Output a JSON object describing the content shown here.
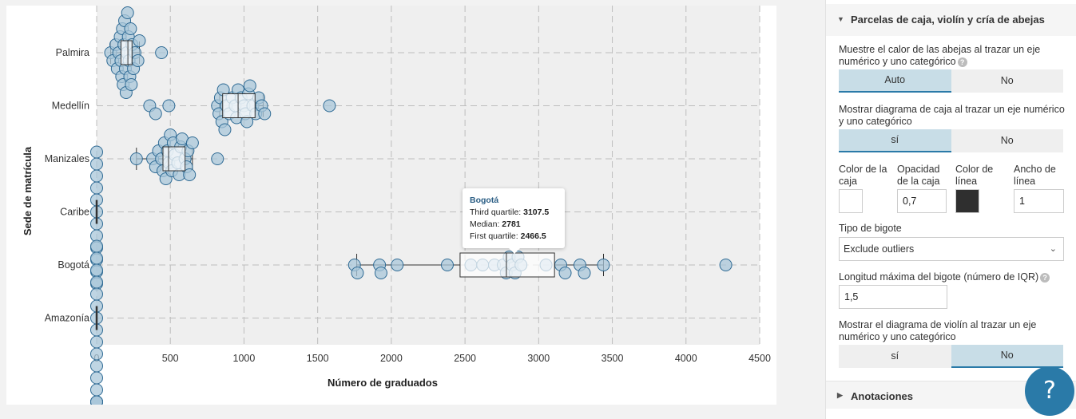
{
  "chart_data": {
    "type": "box-beeswarm",
    "xlabel": "Número de graduados",
    "ylabel": "Sede de matrícula",
    "xlim": [
      0,
      4500
    ],
    "xticks": [
      0,
      500,
      1000,
      1500,
      2000,
      2500,
      3000,
      3500,
      4000,
      4500
    ],
    "categories": [
      "Palmira",
      "Medellín",
      "Manizales",
      "Caribe",
      "Bogotá",
      "Amazonía"
    ],
    "grid": true,
    "series": [
      {
        "name": "Palmira",
        "box": {
          "whisker_low": 95,
          "q1": 165,
          "median": 212,
          "q3": 240,
          "whisker_high": 290
        },
        "points": [
          95,
          110,
          130,
          140,
          150,
          160,
          165,
          170,
          175,
          180,
          185,
          190,
          195,
          200,
          205,
          210,
          215,
          220,
          225,
          230,
          235,
          240,
          250,
          260,
          280,
          290,
          440
        ]
      },
      {
        "name": "Medellín",
        "box": {
          "whisker_low": 835,
          "q1": 855,
          "median": 960,
          "q3": 1075,
          "whisker_high": 1130
        },
        "points": [
          360,
          400,
          490,
          820,
          830,
          840,
          850,
          860,
          870,
          880,
          900,
          920,
          940,
          950,
          960,
          980,
          1000,
          1010,
          1020,
          1030,
          1040,
          1060,
          1080,
          1100,
          1120,
          1140,
          1580
        ]
      },
      {
        "name": "Manizales",
        "box": {
          "whisker_low": 270,
          "q1": 450,
          "median": 488,
          "q3": 600,
          "whisker_high": 650
        },
        "points": [
          270,
          380,
          400,
          420,
          440,
          450,
          460,
          470,
          480,
          490,
          500,
          510,
          520,
          530,
          550,
          560,
          570,
          580,
          600,
          610,
          620,
          630,
          650,
          820
        ]
      },
      {
        "name": "Caribe",
        "box": {
          "whisker_low": 0,
          "q1": 0,
          "median": 0,
          "q3": 0,
          "whisker_high": 0
        },
        "points": [
          0,
          0,
          0,
          0,
          0,
          0,
          0,
          0,
          0,
          0,
          0,
          0
        ]
      },
      {
        "name": "Bogotá",
        "box": {
          "whisker_low": 1765,
          "q1": 2466.5,
          "median": 2781,
          "q3": 3107.5,
          "whisker_high": 3440
        },
        "points": [
          1750,
          1770,
          1920,
          1930,
          2040,
          2380,
          2540,
          2620,
          2700,
          2760,
          2780,
          2800,
          2820,
          2840,
          2860,
          2880,
          3050,
          3150,
          3180,
          3280,
          3310,
          3440,
          4270
        ]
      },
      {
        "name": "Amazonía",
        "box": {
          "whisker_low": 0,
          "q1": 0,
          "median": 0,
          "q3": 0,
          "whisker_high": 0
        },
        "points": [
          0,
          0,
          0,
          0,
          0,
          0,
          0,
          0,
          0,
          0,
          0,
          0,
          0,
          0,
          0,
          0,
          0,
          0
        ]
      }
    ],
    "colors": {
      "point_fill": "#a9c7da",
      "point_stroke": "#2e6a94",
      "box_line": "#333333",
      "grid": "#bdbdbd",
      "plot_bg": "#efefef"
    }
  },
  "tooltip": {
    "title": "Bogotá",
    "line1_label": "Third quartile:",
    "line1_value": "3107.5",
    "line2_label": "Median:",
    "line2_value": "2781",
    "line3_label": "First quartile:",
    "line3_value": "2466.5"
  },
  "panel": {
    "section_title": "Parcelas de caja, violín y cría de abejas",
    "bee_color_label": "Muestre el calor de las abejas al trazar un eje numérico y uno categórico",
    "bee_color_options": [
      "Auto",
      "No"
    ],
    "bee_color_selected": "Auto",
    "box_label": "Mostrar diagrama de caja al trazar un eje numérico y uno categórico",
    "box_options": [
      "sí",
      "No"
    ],
    "box_selected": "sí",
    "box_color_label": "Color de la caja",
    "box_opacity_label": "Opacidad de la caja",
    "box_opacity_value": "0,7",
    "line_color_label": "Color de línea",
    "line_width_label": "Ancho de línea",
    "line_width_value": "1",
    "whisker_type_label": "Tipo de bigote",
    "whisker_type_value": "Exclude outliers",
    "whisker_length_label": "Longitud máxima del bigote (número de IQR)",
    "whisker_length_value": "1,5",
    "violin_label": "Mostrar el diagrama de violín al trazar un eje numérico y uno categórico",
    "violin_options": [
      "sí",
      "No"
    ],
    "violin_selected": "No",
    "annotations_title": "Anotaciones",
    "box_color": "#ffffff",
    "line_color": "#2f2f2f"
  },
  "help_button_label": "?"
}
